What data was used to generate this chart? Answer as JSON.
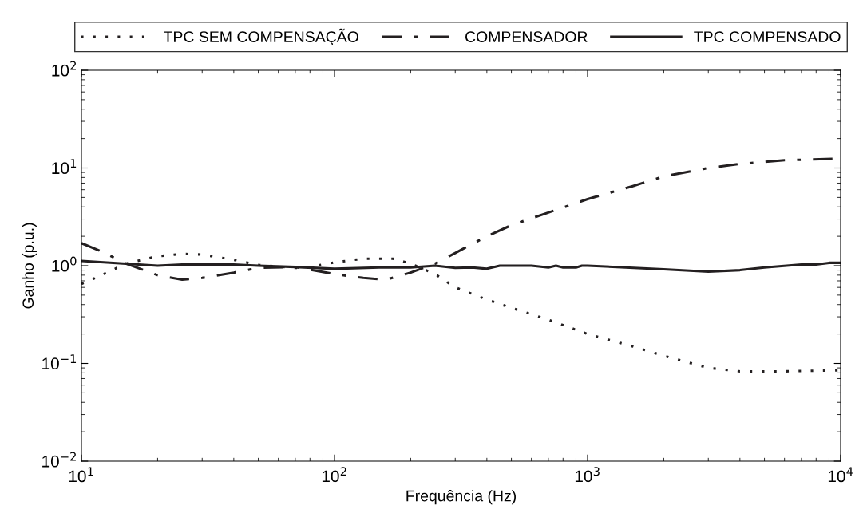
{
  "chart_data": {
    "type": "line",
    "xlabel": "Frequência (Hz)",
    "ylabel": "Ganho (p.u.)",
    "log": "xy",
    "grid": false,
    "legend": "top",
    "marker": "none",
    "xlim": [
      10,
      10000
    ],
    "ylim": [
      0.01,
      100
    ],
    "xticks": [
      {
        "value": 10,
        "label": "10$^{1}$"
      },
      {
        "value": 100,
        "label": "10$^{2}$"
      },
      {
        "value": 1000,
        "label": "10$^{3}$"
      },
      {
        "value": 10000,
        "label": "10$^{4}$"
      }
    ],
    "yticks": [
      {
        "value": 0.01,
        "label": "10$^{−2}$"
      },
      {
        "value": 0.1,
        "label": "10$^{−1}$"
      },
      {
        "value": 1,
        "label": "10$^{0}$"
      },
      {
        "value": 10,
        "label": "10$^{1}$"
      },
      {
        "value": 100,
        "label": "10$^{2}$"
      }
    ],
    "series": [
      {
        "name": "TPC SEM COMPENSAÇÃO",
        "color": "#231f20",
        "line_style": "dotted",
        "x": [
          10,
          12,
          15,
          20,
          25,
          30,
          40,
          50,
          70,
          80,
          100,
          130,
          170,
          200,
          250,
          300,
          400,
          500,
          700,
          1000,
          1500,
          2000,
          3000,
          4000,
          6000,
          10000
        ],
        "values": [
          0.65,
          0.8,
          1.05,
          1.25,
          1.32,
          1.3,
          1.15,
          1.02,
          0.95,
          0.97,
          1.08,
          1.18,
          1.18,
          1.05,
          0.82,
          0.6,
          0.45,
          0.37,
          0.28,
          0.2,
          0.15,
          0.12,
          0.09,
          0.083,
          0.083,
          0.085
        ]
      },
      {
        "name": "COMPENSADOR",
        "color": "#231f20",
        "line_style": "dashdot",
        "x": [
          10,
          12,
          15,
          20,
          25,
          30,
          40,
          50,
          70,
          100,
          130,
          160,
          200,
          250,
          300,
          400,
          500,
          700,
          1000,
          1500,
          2000,
          3000,
          4000,
          6000,
          10000
        ],
        "values": [
          1.7,
          1.4,
          1.05,
          0.8,
          0.72,
          0.75,
          0.85,
          0.95,
          0.97,
          0.82,
          0.75,
          0.72,
          0.85,
          1.05,
          1.35,
          2.0,
          2.6,
          3.5,
          4.8,
          6.5,
          8.2,
          10,
          11,
          12,
          12.5
        ]
      },
      {
        "name": "TPC COMPENSADO",
        "color": "#231f20",
        "line_style": "solid",
        "x": [
          10,
          15,
          20,
          25,
          40,
          50,
          70,
          100,
          150,
          200,
          250,
          300,
          350,
          400,
          450,
          600,
          700,
          750,
          800,
          900,
          950,
          1000,
          2000,
          3000,
          4000,
          5000,
          7000,
          8000,
          9000,
          10000
        ],
        "values": [
          1.12,
          1.05,
          1.0,
          1.03,
          1.03,
          1.0,
          0.97,
          0.93,
          0.96,
          0.96,
          1.0,
          0.95,
          0.96,
          0.93,
          1.0,
          1.0,
          0.96,
          1.0,
          0.96,
          0.96,
          1.0,
          1.0,
          0.92,
          0.87,
          0.9,
          0.96,
          1.03,
          1.03,
          1.07,
          1.07
        ]
      }
    ]
  }
}
